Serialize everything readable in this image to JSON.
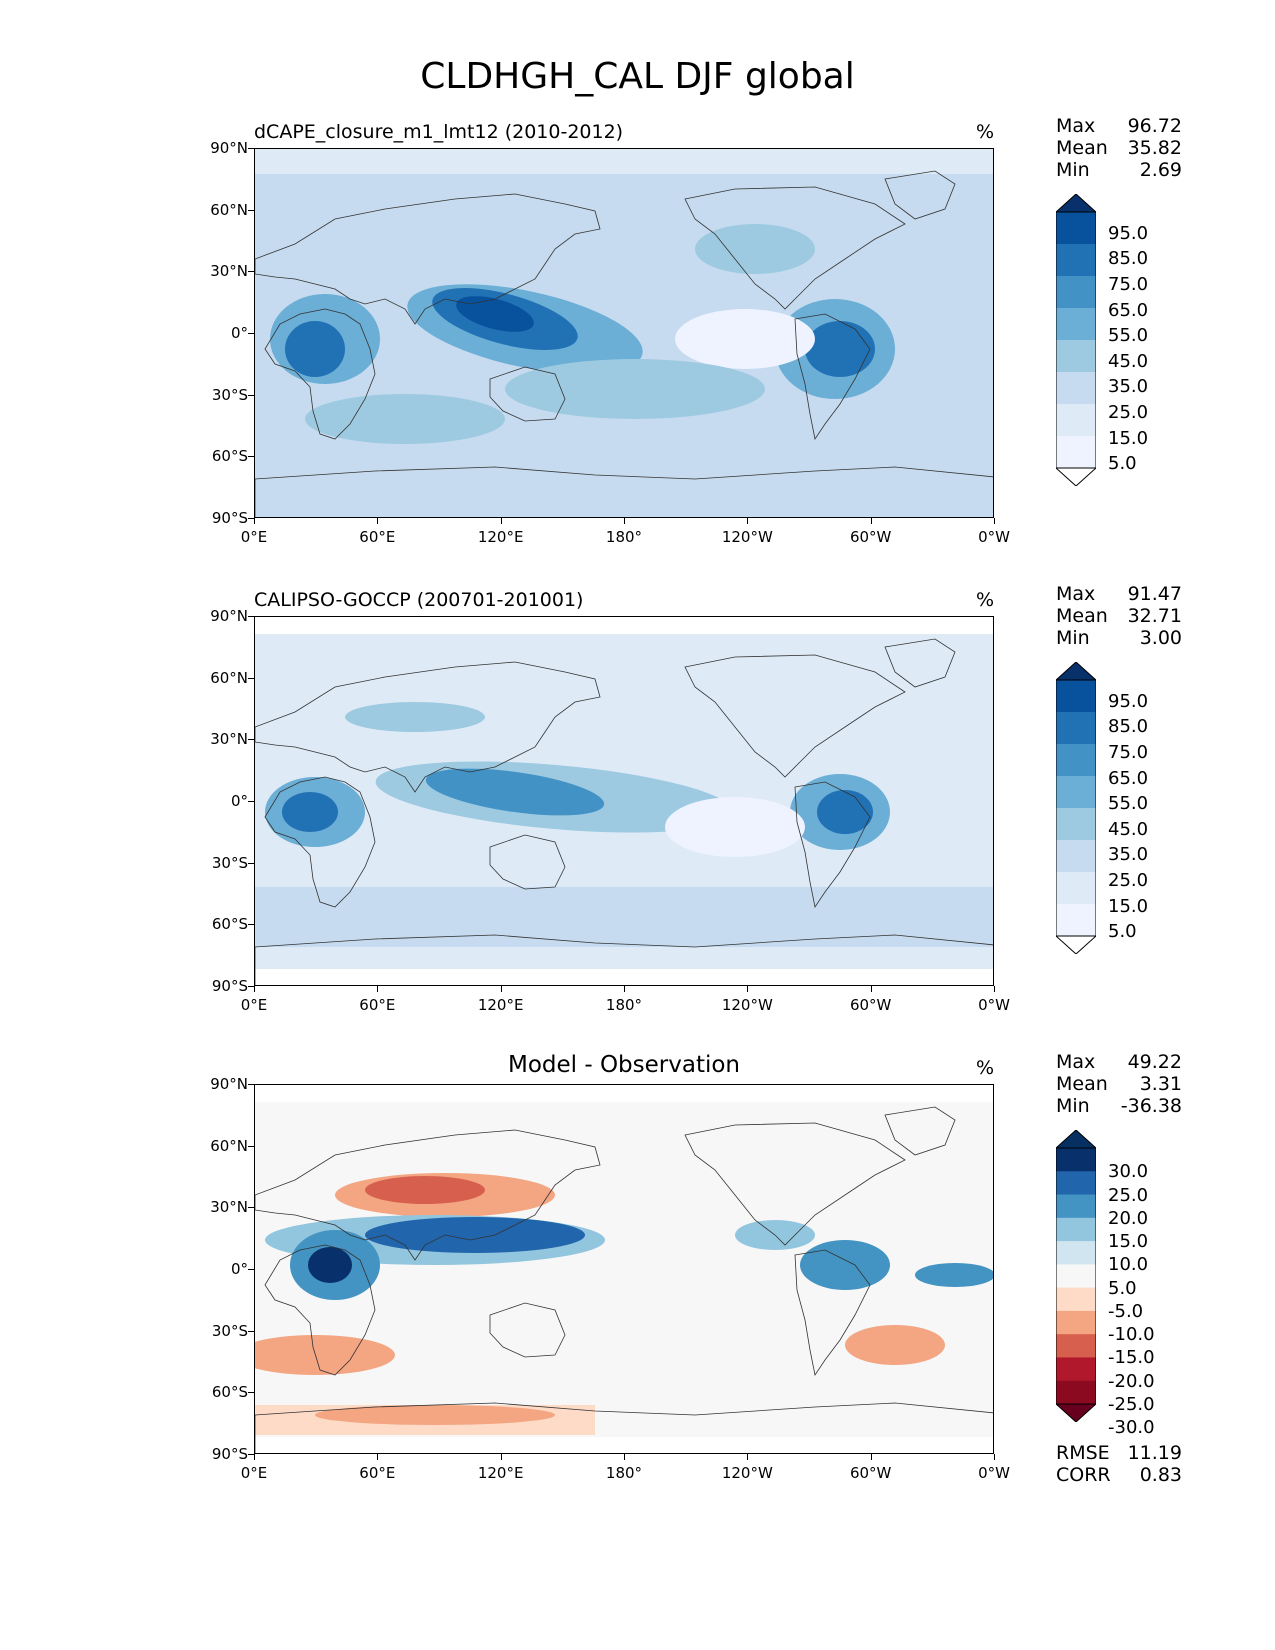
{
  "figure": {
    "title": "CLDHGH_CAL DJF global"
  },
  "axes": {
    "lat_ticks": [
      "90°N",
      "60°N",
      "30°N",
      "0°",
      "30°S",
      "60°S",
      "90°S"
    ],
    "lon_ticks": [
      "0°E",
      "60°E",
      "120°E",
      "180°",
      "120°W",
      "60°W",
      "0°W"
    ]
  },
  "panels": [
    {
      "title": "dCAPE_closure_m1_lmt12 (2010-2012)",
      "unit": "%",
      "stats": {
        "max_label": "Max",
        "max": "96.72",
        "mean_label": "Mean",
        "mean": "35.82",
        "min_label": "Min",
        "min": "2.69"
      },
      "colorbar_labels": [
        "95.0",
        "85.0",
        "75.0",
        "65.0",
        "55.0",
        "45.0",
        "35.0",
        "25.0",
        "15.0",
        "5.0"
      ],
      "colorbar_colors": [
        "#08306b",
        "#08519c",
        "#2171b5",
        "#4292c6",
        "#6baed6",
        "#9ecae1",
        "#c6dbef",
        "#deebf7",
        "#eff3ff",
        "#ffffff"
      ]
    },
    {
      "title": "CALIPSO-GOCCP (200701-201001)",
      "unit": "%",
      "stats": {
        "max_label": "Max",
        "max": "91.47",
        "mean_label": "Mean",
        "mean": "32.71",
        "min_label": "Min",
        "min": "3.00"
      },
      "colorbar_labels": [
        "95.0",
        "85.0",
        "75.0",
        "65.0",
        "55.0",
        "45.0",
        "35.0",
        "25.0",
        "15.0",
        "5.0"
      ],
      "colorbar_colors": [
        "#08306b",
        "#08519c",
        "#2171b5",
        "#4292c6",
        "#6baed6",
        "#9ecae1",
        "#c6dbef",
        "#deebf7",
        "#eff3ff",
        "#ffffff"
      ]
    },
    {
      "title": "Model - Observation",
      "unit": "%",
      "stats": {
        "max_label": "Max",
        "max": "49.22",
        "mean_label": "Mean",
        "mean": "3.31",
        "min_label": "Min",
        "min": "-36.38"
      },
      "colorbar_labels": [
        "30.0",
        "25.0",
        "20.0",
        "15.0",
        "10.0",
        "5.0",
        "-5.0",
        "-10.0",
        "-15.0",
        "-20.0",
        "-25.0",
        "-30.0"
      ],
      "colorbar_colors": [
        "#053061",
        "#08306b",
        "#2166ac",
        "#4393c3",
        "#92c5de",
        "#d1e5f0",
        "#f7f7f7",
        "#fddbc7",
        "#f4a582",
        "#d6604d",
        "#b2182b",
        "#8b0a1f",
        "#67001f"
      ],
      "extra_stats": {
        "rmse_label": "RMSE",
        "rmse": "11.19",
        "corr_label": "CORR",
        "corr": "0.83"
      }
    }
  ]
}
